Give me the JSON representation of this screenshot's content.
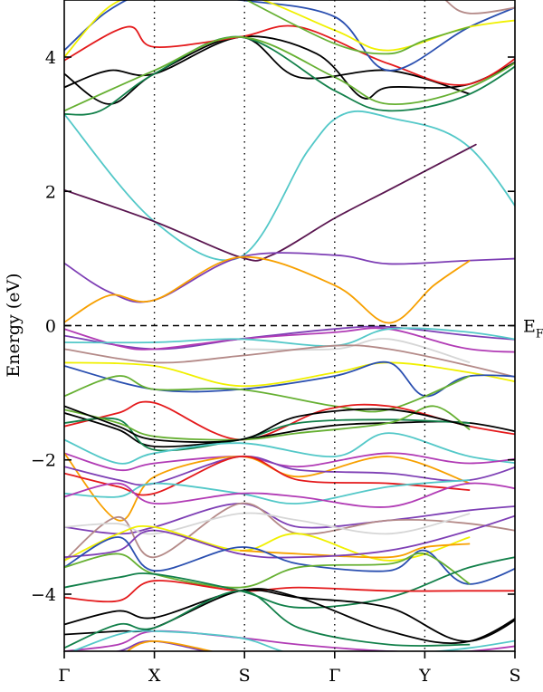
{
  "chart_data": {
    "type": "line",
    "title": "",
    "ylabel": "Energy (eV)",
    "ylim": [
      -4.85,
      4.85
    ],
    "y_ticks": [
      {
        "value": 4,
        "label": "4"
      },
      {
        "value": 2,
        "label": "2"
      },
      {
        "value": 0,
        "label": "0"
      },
      {
        "value": -2,
        "label": "−2"
      },
      {
        "value": -4,
        "label": "−4"
      }
    ],
    "kpoints": [
      {
        "label": "Γ",
        "pos": 0.0
      },
      {
        "label": "X",
        "pos": 1.0
      },
      {
        "label": "S",
        "pos": 1.0
      },
      {
        "label": "Γ",
        "pos": 1.0
      },
      {
        "label": "Y",
        "pos": 1.0
      },
      {
        "label": "S",
        "pos": 1.0
      }
    ],
    "fermi_level": {
      "energy": 0,
      "label_main": "E",
      "label_sub": "F"
    },
    "grid": false,
    "colors": {
      "black": "#000000",
      "red": "#e41a1c",
      "blue": "#2a4fb0",
      "yellow": "#f0f000",
      "green": "#66b032",
      "darkgreen": "#12804a",
      "cyan": "#53c8c8",
      "purple": "#7e3fb5",
      "darkpurple": "#5a1650",
      "orange": "#f7a000",
      "magenta": "#b13bb5",
      "tan": "#b48a88",
      "lightgray": "#d6d6d6"
    },
    "series": [
      {
        "color": "cyan",
        "x": [
          0,
          1.0,
          1.95,
          2.7,
          3.1,
          3.6,
          4.5,
          5.4
        ],
        "y": [
          3.15,
          1.55,
          1.02,
          2.6,
          3.15,
          3.1,
          2.65,
          0.95
        ]
      },
      {
        "color": "darkpurple",
        "x": [
          0,
          1.0,
          1.95,
          2.3,
          3.0,
          3.6,
          4.5,
          4.5
        ],
        "y": [
          2.02,
          1.55,
          1.02,
          1.05,
          1.6,
          2.02,
          2.65,
          2.65
        ]
      },
      {
        "color": "purple",
        "x": [
          0,
          0.5,
          1.0,
          1.95,
          3.0,
          3.6,
          4.5,
          5.4
        ],
        "y": [
          0.93,
          0.5,
          0.38,
          1.02,
          1.05,
          0.92,
          0.97,
          1.02
        ]
      },
      {
        "color": "orange",
        "x": [
          0,
          0.5,
          1.0,
          1.95,
          3.0,
          3.6,
          4.1,
          4.5
        ],
        "y": [
          0.05,
          0.45,
          0.38,
          1.02,
          0.6,
          0.04,
          0.6,
          0.97
        ]
      },
      {
        "color": "black",
        "x": [
          0,
          0.5,
          1.0,
          1.95,
          2.8,
          3.3,
          3.6,
          4.5,
          5.4
        ],
        "y": [
          3.55,
          3.8,
          3.75,
          4.3,
          4.05,
          3.4,
          3.55,
          3.6,
          4.25
        ]
      },
      {
        "color": "black",
        "x": [
          0,
          0.5,
          1.0,
          1.95,
          2.6,
          3.6,
          4.5
        ],
        "y": [
          3.75,
          3.3,
          3.75,
          4.3,
          3.7,
          3.8,
          3.45
        ]
      },
      {
        "color": "darkgreen",
        "x": [
          0,
          0.4,
          1.0,
          1.95,
          3.0,
          3.6,
          4.5,
          5.4
        ],
        "y": [
          3.15,
          3.2,
          3.75,
          4.3,
          3.5,
          3.2,
          3.45,
          4.25
        ]
      },
      {
        "color": "red",
        "x": [
          0,
          0.7,
          1.0,
          1.95,
          2.6,
          3.6,
          4.5,
          5.4
        ],
        "y": [
          3.95,
          4.45,
          4.15,
          4.3,
          4.45,
          3.9,
          3.6,
          4.4
        ]
      },
      {
        "color": "green",
        "x": [
          0,
          1.0,
          1.95,
          3.0,
          3.6,
          4.5,
          5.4
        ],
        "y": [
          3.2,
          3.8,
          4.3,
          3.7,
          3.3,
          3.55,
          4.25
        ]
      },
      {
        "color": "blue",
        "x": [
          0,
          0.5,
          1.0,
          1.95,
          3.0,
          3.6,
          4.5,
          5.4
        ],
        "y": [
          4.1,
          4.7,
          4.95,
          4.85,
          4.6,
          3.8,
          4.45,
          4.95
        ]
      },
      {
        "color": "yellow",
        "x": [
          0,
          0.5,
          1.0,
          1.95,
          3.0,
          3.6,
          4.5,
          5.4
        ],
        "y": [
          4.0,
          4.75,
          4.95,
          4.95,
          4.4,
          4.1,
          4.45,
          4.6
        ]
      },
      {
        "color": "tan",
        "x": [
          3.6,
          4.1,
          4.5,
          5.4
        ],
        "y": [
          4.85,
          4.95,
          4.65,
          4.85
        ]
      },
      {
        "color": "green",
        "x": [
          1.95,
          3.0,
          3.6,
          4.0,
          4.5
        ],
        "y": [
          4.9,
          4.2,
          4.05,
          4.25,
          4.45
        ]
      },
      {
        "color": "purple",
        "x": [
          0,
          1.0,
          1.95,
          3.0,
          3.6,
          4.5,
          5.4
        ],
        "y": [
          -0.15,
          -0.35,
          -0.2,
          -0.05,
          -0.02,
          -0.15,
          -0.25
        ]
      },
      {
        "color": "magenta",
        "x": [
          0,
          0.6,
          1.0,
          1.95,
          3.0,
          3.6,
          4.5,
          5.4
        ],
        "y": [
          -0.05,
          -0.3,
          -0.35,
          -0.2,
          -0.1,
          -0.05,
          -0.35,
          -0.4
        ]
      },
      {
        "color": "cyan",
        "x": [
          0,
          1.0,
          1.95,
          3.0,
          3.6,
          4.5,
          5.4
        ],
        "y": [
          -0.25,
          -0.25,
          -0.2,
          -0.3,
          -0.05,
          -0.1,
          -0.3
        ]
      },
      {
        "color": "lightgray",
        "x": [
          1.95,
          3.0,
          3.6,
          4.5
        ],
        "y": [
          -0.35,
          -0.35,
          -0.2,
          -0.55
        ]
      },
      {
        "color": "tan",
        "x": [
          0,
          1.0,
          1.95,
          3.0,
          3.6,
          4.5,
          5.4
        ],
        "y": [
          -0.35,
          -0.55,
          -0.45,
          -0.3,
          -0.35,
          -0.6,
          -0.9
        ]
      },
      {
        "color": "yellow",
        "x": [
          0,
          1.0,
          1.95,
          3.0,
          3.6,
          4.5,
          5.4
        ],
        "y": [
          -0.55,
          -0.6,
          -0.9,
          -0.7,
          -0.55,
          -0.7,
          -0.95
        ]
      },
      {
        "color": "blue",
        "x": [
          0,
          1.0,
          1.95,
          3.0,
          3.6,
          4.0,
          4.5,
          5.4
        ],
        "y": [
          -0.6,
          -0.95,
          -0.95,
          -0.75,
          -0.55,
          -1.05,
          -0.75,
          -0.8
        ]
      },
      {
        "color": "green",
        "x": [
          0,
          0.6,
          1.0,
          1.95,
          3.0,
          3.6,
          4.5
        ],
        "y": [
          -1.05,
          -0.75,
          -0.95,
          -0.95,
          -1.2,
          -1.25,
          -0.75
        ]
      },
      {
        "color": "red",
        "x": [
          0,
          0.6,
          1.0,
          1.95,
          2.9,
          3.6,
          4.5,
          5.4
        ],
        "y": [
          -1.5,
          -1.3,
          -1.15,
          -1.7,
          -1.25,
          -1.2,
          -1.5,
          -1.7
        ]
      },
      {
        "color": "black",
        "x": [
          0,
          0.6,
          1.0,
          1.95,
          2.9,
          3.6,
          4.5,
          5.4
        ],
        "y": [
          -1.3,
          -1.55,
          -1.8,
          -1.7,
          -1.5,
          -1.45,
          -1.45,
          -1.7
        ]
      },
      {
        "color": "darkgreen",
        "x": [
          0,
          0.6,
          1.0,
          1.95,
          2.6,
          3.6,
          4.5
        ],
        "y": [
          -1.45,
          -1.4,
          -1.85,
          -1.7,
          -1.45,
          -1.4,
          -1.45
        ]
      },
      {
        "color": "green",
        "x": [
          0,
          0.6,
          1.0,
          1.95,
          2.6,
          3.6,
          4.1,
          4.5
        ],
        "y": [
          -1.25,
          -1.45,
          -1.65,
          -1.7,
          -1.6,
          -1.45,
          -1.2,
          -1.55
        ]
      },
      {
        "color": "black",
        "x": [
          0,
          0.6,
          1.0,
          1.95,
          2.6,
          3.6,
          4.5
        ],
        "y": [
          -1.2,
          -1.5,
          -1.7,
          -1.7,
          -1.35,
          -1.25,
          -1.5
        ]
      },
      {
        "color": "cyan",
        "x": [
          0,
          0.6,
          1.0,
          1.95,
          3.0,
          3.6,
          4.5,
          5.4
        ],
        "y": [
          -1.7,
          -2.05,
          -1.9,
          -1.75,
          -1.95,
          -1.6,
          -1.95,
          -2.1
        ]
      },
      {
        "color": "magenta",
        "x": [
          0,
          0.6,
          1.0,
          1.95,
          2.6,
          3.6,
          4.5,
          5.4
        ],
        "y": [
          -1.9,
          -2.15,
          -2.05,
          -1.95,
          -2.1,
          -1.9,
          -2.05,
          -1.9
        ]
      },
      {
        "color": "orange",
        "x": [
          0,
          0.6,
          1.0,
          1.95,
          2.6,
          3.6,
          4.5
        ],
        "y": [
          -1.9,
          -2.9,
          -2.25,
          -1.95,
          -2.25,
          -1.95,
          -2.35
        ]
      },
      {
        "color": "purple",
        "x": [
          0,
          0.6,
          1.0,
          1.95,
          2.6,
          3.6,
          4.5,
          5.4
        ],
        "y": [
          -2.1,
          -2.3,
          -2.35,
          -1.95,
          -2.15,
          -2.2,
          -2.3,
          -1.9
        ]
      },
      {
        "color": "red",
        "x": [
          0,
          0.6,
          1.0,
          1.95,
          2.6,
          3.6,
          4.5
        ],
        "y": [
          -2.2,
          -2.4,
          -2.5,
          -1.95,
          -2.3,
          -2.35,
          -2.45
        ]
      },
      {
        "color": "cyan",
        "x": [
          0,
          0.6,
          1.0,
          1.95,
          2.6,
          3.6,
          4.5
        ],
        "y": [
          -2.5,
          -2.55,
          -2.35,
          -2.5,
          -2.65,
          -2.4,
          -2.3
        ]
      },
      {
        "color": "magenta",
        "x": [
          0,
          0.6,
          1.0,
          1.95,
          2.6,
          3.6,
          4.5,
          5.4
        ],
        "y": [
          -2.55,
          -2.35,
          -2.65,
          -2.5,
          -2.55,
          -2.7,
          -2.35,
          -2.55
        ]
      },
      {
        "color": "purple",
        "x": [
          0,
          0.6,
          1.0,
          1.95,
          2.6,
          3.6,
          4.5,
          5.4
        ],
        "y": [
          -3.0,
          -3.1,
          -3.0,
          -2.65,
          -3.0,
          -2.9,
          -2.75,
          -2.65
        ]
      },
      {
        "color": "tan",
        "x": [
          0,
          0.6,
          1.0,
          1.95,
          2.6,
          3.6,
          4.5,
          5.4
        ],
        "y": [
          -3.5,
          -2.85,
          -3.45,
          -2.65,
          -3.1,
          -2.9,
          -2.95,
          -3.15
        ]
      },
      {
        "color": "lightgray",
        "x": [
          0,
          0.6,
          1.0,
          1.95,
          2.6,
          3.6,
          4.5
        ],
        "y": [
          -3.0,
          -2.95,
          -3.1,
          -2.8,
          -2.9,
          -3.1,
          -2.8
        ]
      },
      {
        "color": "yellow",
        "x": [
          0,
          0.6,
          1.0,
          1.95,
          2.6,
          3.6,
          4.5
        ],
        "y": [
          -3.5,
          -3.1,
          -3.0,
          -3.35,
          -3.1,
          -3.5,
          -3.15
        ]
      },
      {
        "color": "orange",
        "x": [
          1.95,
          2.6,
          3.6,
          4.0,
          4.5
        ],
        "y": [
          -3.35,
          -3.4,
          -3.45,
          -3.3,
          -3.25
        ]
      },
      {
        "color": "purple",
        "x": [
          0,
          0.6,
          1.0,
          1.95,
          2.6,
          3.6,
          4.5,
          5.4
        ],
        "y": [
          -3.45,
          -3.35,
          -3.05,
          -3.4,
          -3.45,
          -3.35,
          -3.05,
          -2.65
        ]
      },
      {
        "color": "blue",
        "x": [
          0,
          0.6,
          1.0,
          1.95,
          2.6,
          3.6,
          4.0,
          4.5,
          5.4
        ],
        "y": [
          -3.6,
          -3.15,
          -3.65,
          -3.3,
          -3.55,
          -3.65,
          -3.35,
          -3.85,
          -3.35
        ]
      },
      {
        "color": "green",
        "x": [
          0,
          0.6,
          1.0,
          1.95,
          2.6,
          3.6,
          4.0,
          4.5
        ],
        "y": [
          -3.6,
          -3.4,
          -3.7,
          -3.9,
          -3.6,
          -3.55,
          -3.4,
          -3.85
        ]
      },
      {
        "color": "darkgreen",
        "x": [
          0,
          0.6,
          1.0,
          1.95,
          2.6,
          3.6,
          4.5,
          5.4
        ],
        "y": [
          -3.9,
          -3.75,
          -3.7,
          -3.95,
          -4.2,
          -4.05,
          -3.6,
          -3.35
        ]
      },
      {
        "color": "red",
        "x": [
          0,
          0.6,
          1.0,
          1.95,
          2.6,
          3.6,
          4.5,
          5.4
        ],
        "y": [
          -4.05,
          -4.1,
          -3.8,
          -3.95,
          -3.9,
          -3.95,
          -3.95,
          -3.95
        ]
      },
      {
        "color": "black",
        "x": [
          0,
          0.6,
          1.0,
          1.95,
          2.6,
          3.6,
          4.5,
          5.4
        ],
        "y": [
          -4.45,
          -4.25,
          -4.35,
          -3.95,
          -4.05,
          -4.2,
          -4.7,
          -4.0
        ]
      },
      {
        "color": "black",
        "x": [
          0,
          0.6,
          1.0,
          1.95,
          2.6,
          3.6,
          4.5,
          5.4
        ],
        "y": [
          -4.6,
          -4.55,
          -4.5,
          -3.95,
          -4.05,
          -4.55,
          -4.7,
          -4.0
        ]
      },
      {
        "color": "darkgreen",
        "x": [
          0,
          0.6,
          1.0,
          1.95,
          2.6,
          3.6,
          4.5
        ],
        "y": [
          -4.8,
          -4.45,
          -4.5,
          -3.95,
          -4.5,
          -4.75,
          -4.75
        ]
      },
      {
        "color": "magenta",
        "x": [
          0,
          0.6,
          1.0,
          1.95,
          2.6,
          3.6,
          4.5,
          5.4
        ],
        "y": [
          -4.85,
          -4.75,
          -4.55,
          -4.65,
          -4.75,
          -4.85,
          -4.85,
          -4.7
        ]
      },
      {
        "color": "cyan",
        "x": [
          0,
          0.6,
          1.0,
          1.95,
          2.6,
          3.6,
          4.5,
          5.4
        ],
        "y": [
          -4.9,
          -4.6,
          -4.55,
          -4.65,
          -4.9,
          -4.9,
          -4.8,
          -4.6
        ]
      },
      {
        "color": "purple",
        "x": [
          0,
          0.6,
          1.0,
          1.95,
          2.6,
          3.6,
          4.5,
          5.4
        ],
        "y": [
          -4.95,
          -4.85,
          -4.7,
          -4.95,
          -4.9,
          -4.85,
          -4.95,
          -4.85
        ]
      },
      {
        "color": "orange",
        "x": [
          0.6,
          1.0,
          1.95
        ],
        "y": [
          -4.95,
          -4.7,
          -4.95
        ]
      }
    ]
  }
}
